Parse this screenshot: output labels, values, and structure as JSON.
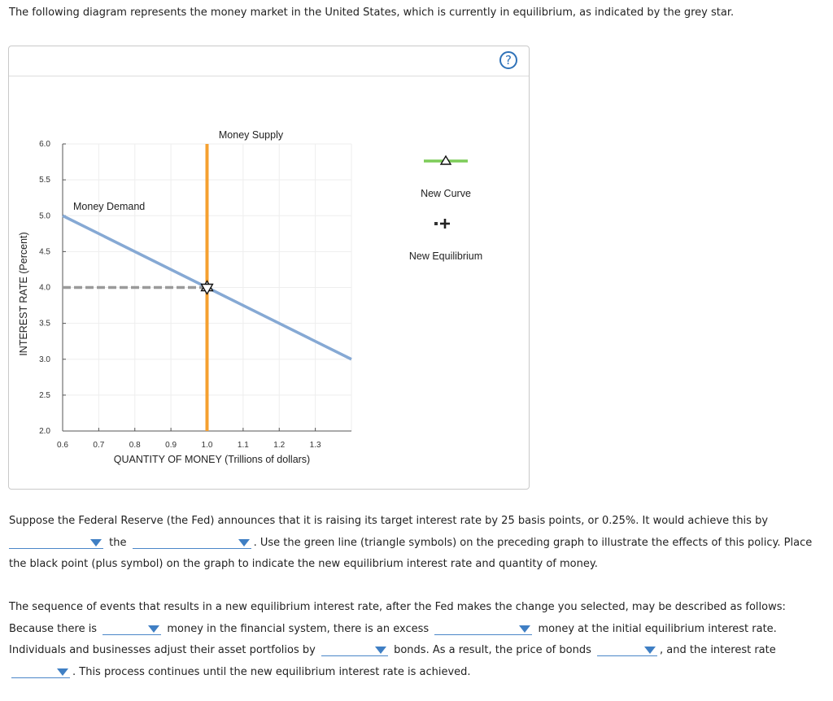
{
  "intro": "The following diagram represents the money market in the United States, which is currently in equilibrium, as indicated by the grey star.",
  "help_label": "?",
  "chart_data": {
    "type": "line",
    "xlabel": "QUANTITY OF MONEY (Trillions of dollars)",
    "ylabel": "INTEREST RATE (Percent)",
    "xlim": [
      0.6,
      1.4
    ],
    "ylim": [
      2.0,
      6.0
    ],
    "x_ticks": [
      "0.6",
      "0.7",
      "0.8",
      "0.9",
      "1.0",
      "1.1",
      "1.2",
      "1.3"
    ],
    "y_ticks": [
      "2.0",
      "2.5",
      "3.0",
      "3.5",
      "4.0",
      "4.5",
      "5.0",
      "5.5",
      "6.0"
    ],
    "grid": true,
    "series": [
      {
        "name": "Money Supply",
        "color": "#f5a030",
        "x": [
          1.0,
          1.0
        ],
        "y": [
          2.0,
          6.0
        ]
      },
      {
        "name": "Money Demand",
        "color": "#86a9d4",
        "x": [
          0.6,
          1.4
        ],
        "y": [
          5.0,
          3.0
        ]
      }
    ],
    "equilibrium": {
      "x": 1.0,
      "y": 4.0,
      "guide_color": "#9a9a9a"
    }
  },
  "legend": {
    "new_curve": "New Curve",
    "new_curve_color": "#7dcc58",
    "new_equilibrium": "New Equilibrium"
  },
  "question1": {
    "text_a": "Suppose the Federal Reserve (the Fed) announces that it is raising its target interest rate by 25 basis points, or 0.25%. It would achieve this by",
    "text_b": "the",
    "text_c": ". Use the green line (triangle symbols) on the preceding graph to illustrate the effects of this policy. Place the black point (plus symbol) on the graph to indicate the new equilibrium interest rate and quantity of money."
  },
  "question2": {
    "text_a": "The sequence of events that results in a new equilibrium interest rate, after the Fed makes the change you selected, may be described as follows: Because there is",
    "text_b": "money in the financial system, there is an excess",
    "text_c": "money at the initial equilibrium interest rate. Individuals and businesses adjust their asset portfolios by",
    "text_d": "bonds. As a result, the price of bonds",
    "text_e": ", and the interest rate",
    "text_f": ". This process continues until the new equilibrium interest rate is achieved."
  }
}
